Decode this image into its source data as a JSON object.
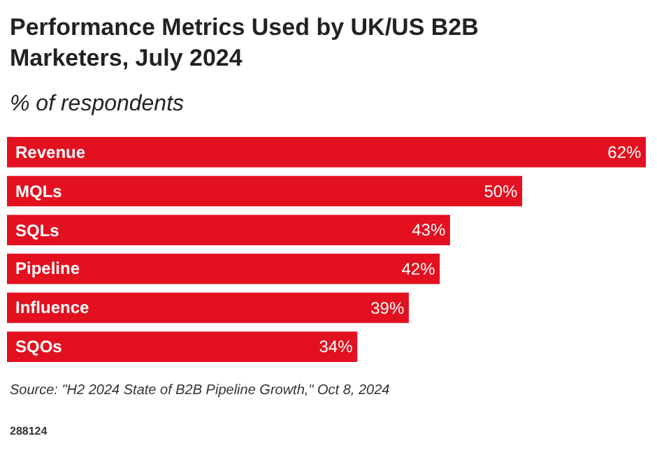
{
  "chart_data": {
    "type": "bar",
    "orientation": "horizontal",
    "title": "Performance Metrics Used by UK/US B2B Marketers, July 2024",
    "subtitle": "% of respondents",
    "categories": [
      "Revenue",
      "MQLs",
      "SQLs",
      "Pipeline",
      "Influence",
      "SQOs"
    ],
    "values": [
      62,
      50,
      43,
      42,
      39,
      34
    ],
    "value_labels": [
      "62%",
      "50%",
      "43%",
      "42%",
      "39%",
      "34%"
    ],
    "color": "#e3101f",
    "annotations": [
      "Source: \"H2 2024 State of B2B Pipeline Growth,\" Oct 8, 2024",
      "288124"
    ]
  }
}
